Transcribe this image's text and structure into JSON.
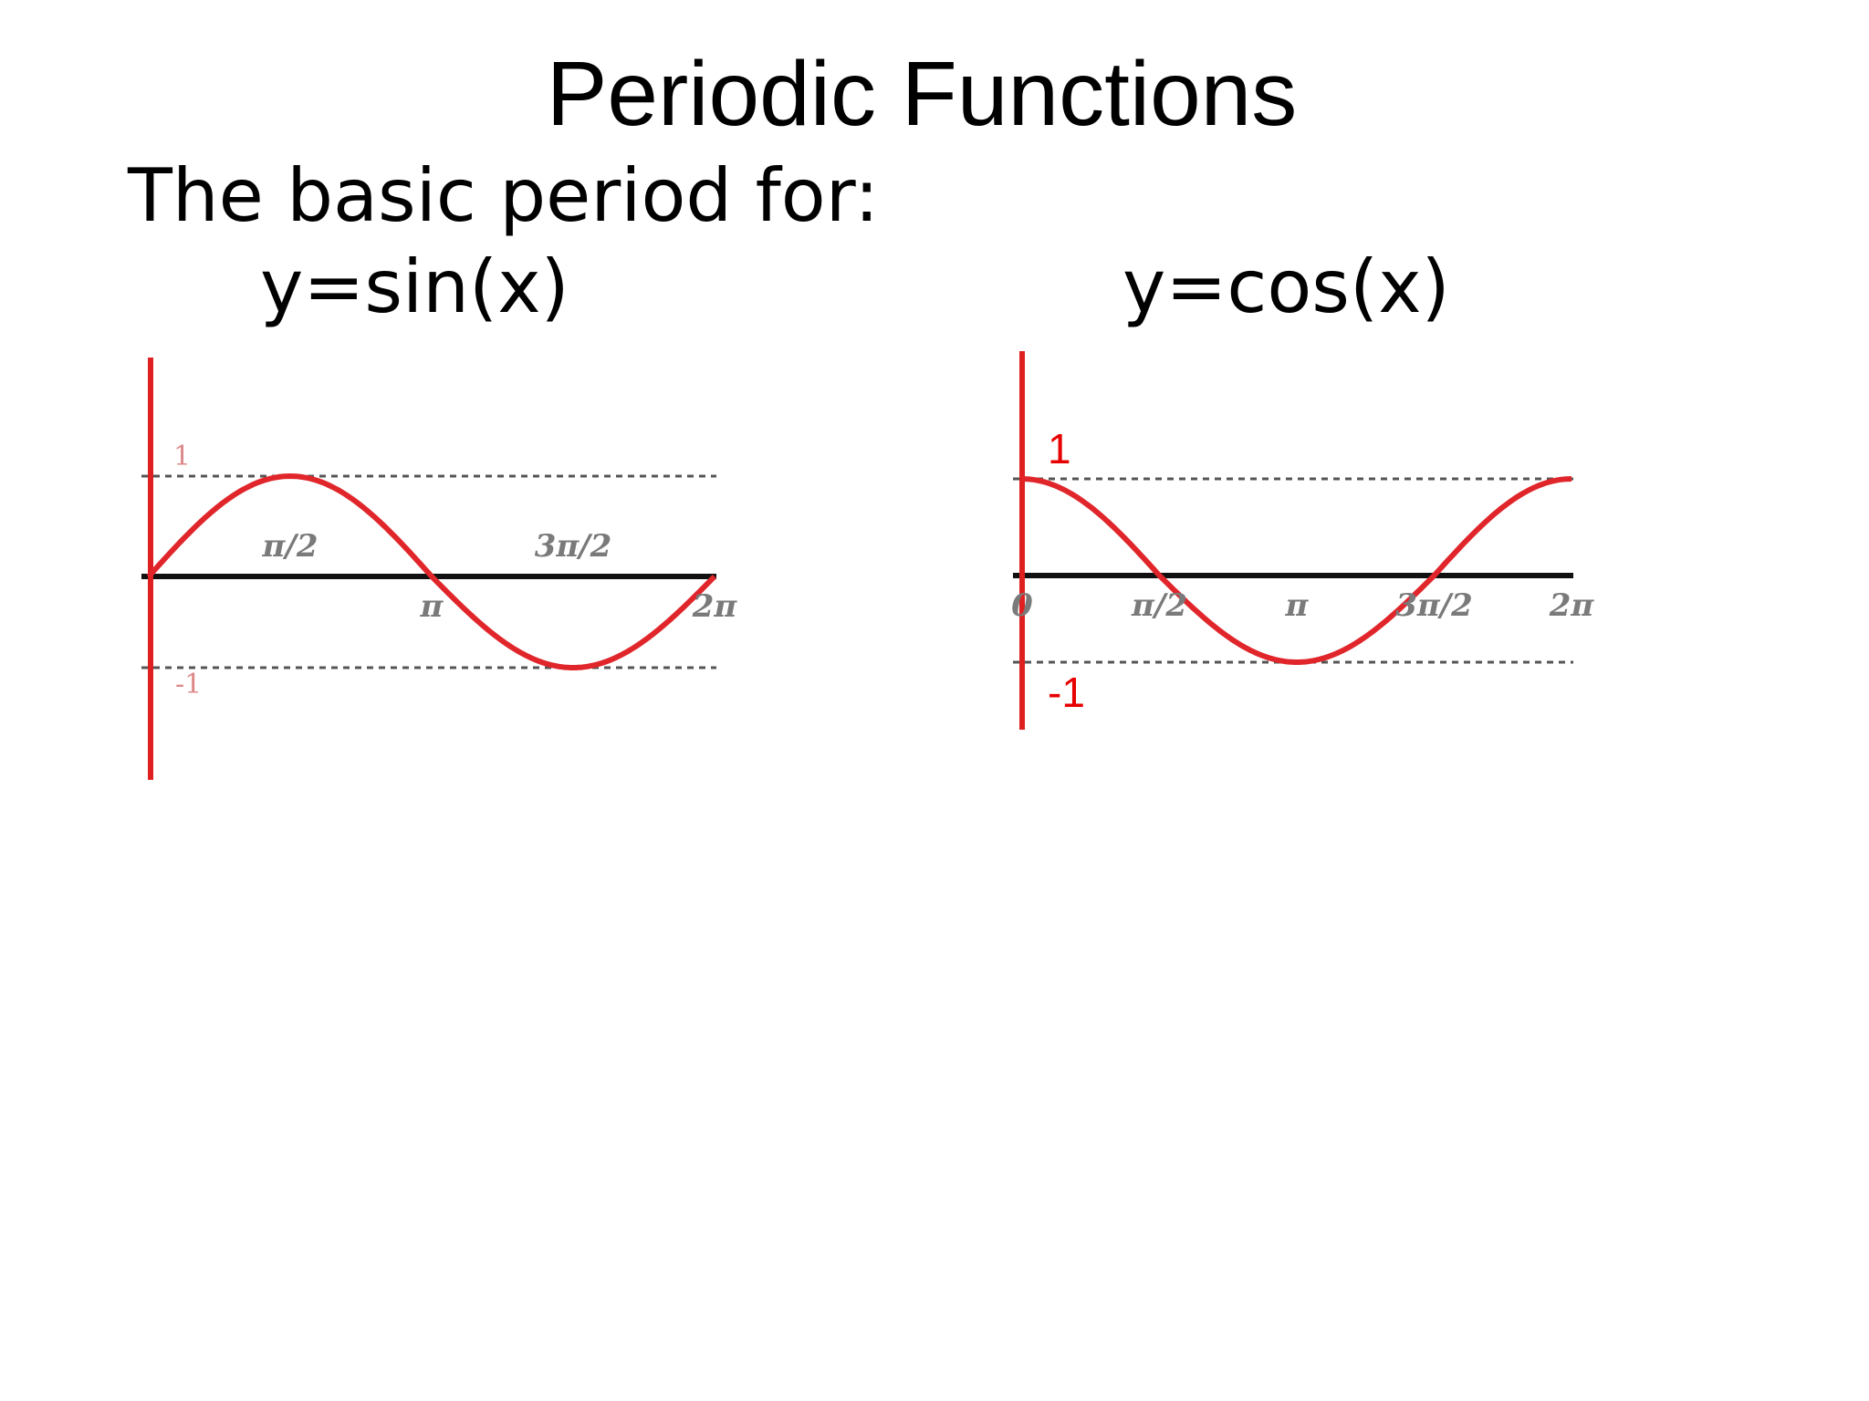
{
  "title": "Periodic Functions",
  "subtitle": "The basic period for:",
  "colors": {
    "curve": "#e0262b",
    "axis": "#111111",
    "yaxis": "#e02020",
    "dashed": "#555555"
  },
  "chart_data": [
    {
      "type": "line",
      "title": "y=sin(x)",
      "function": "sin",
      "x": [
        0,
        0.3927,
        0.7854,
        1.1781,
        1.5708,
        1.9635,
        2.3562,
        2.7489,
        3.1416,
        3.5343,
        3.927,
        4.3197,
        4.7124,
        5.1051,
        5.4978,
        5.8905,
        6.2832
      ],
      "y": [
        0,
        0.383,
        0.707,
        0.924,
        1,
        0.924,
        0.707,
        0.383,
        0,
        -0.383,
        -0.707,
        -0.924,
        -1,
        -0.924,
        -0.707,
        -0.383,
        0
      ],
      "xlim": [
        0,
        6.2832
      ],
      "ylim": [
        -1,
        1
      ],
      "x_ticks": [
        {
          "label": "π/2",
          "value": 1.5708,
          "position": "above"
        },
        {
          "label": "π",
          "value": 3.1416,
          "position": "below"
        },
        {
          "label": "3π/2",
          "value": 4.7124,
          "position": "above"
        },
        {
          "label": "2π",
          "value": 6.2832,
          "position": "below"
        }
      ],
      "y_ticks": [
        {
          "label": "1",
          "value": 1
        },
        {
          "label": "-1",
          "value": -1
        }
      ],
      "reference_lines": [
        1,
        -1
      ],
      "grid": false
    },
    {
      "type": "line",
      "title": "y=cos(x)",
      "function": "cos",
      "x": [
        0,
        0.3927,
        0.7854,
        1.1781,
        1.5708,
        1.9635,
        2.3562,
        2.7489,
        3.1416,
        3.5343,
        3.927,
        4.3197,
        4.7124,
        5.1051,
        5.4978,
        5.8905,
        6.2832
      ],
      "y": [
        1,
        0.924,
        0.707,
        0.383,
        0,
        -0.383,
        -0.707,
        -0.924,
        -1,
        -0.924,
        -0.707,
        -0.383,
        0,
        0.383,
        0.707,
        0.924,
        1
      ],
      "xlim": [
        0,
        6.2832
      ],
      "ylim": [
        -1,
        1
      ],
      "x_ticks": [
        {
          "label": "0",
          "value": 0,
          "position": "below"
        },
        {
          "label": "π/2",
          "value": 1.5708,
          "position": "below"
        },
        {
          "label": "π",
          "value": 3.1416,
          "position": "below"
        },
        {
          "label": "3π/2",
          "value": 4.7124,
          "position": "below"
        },
        {
          "label": "2π",
          "value": 6.2832,
          "position": "below"
        }
      ],
      "y_ticks": [
        {
          "label": "1",
          "value": 1
        },
        {
          "label": "-1",
          "value": -1
        }
      ],
      "reference_lines": [
        1,
        -1
      ],
      "grid": false
    }
  ]
}
